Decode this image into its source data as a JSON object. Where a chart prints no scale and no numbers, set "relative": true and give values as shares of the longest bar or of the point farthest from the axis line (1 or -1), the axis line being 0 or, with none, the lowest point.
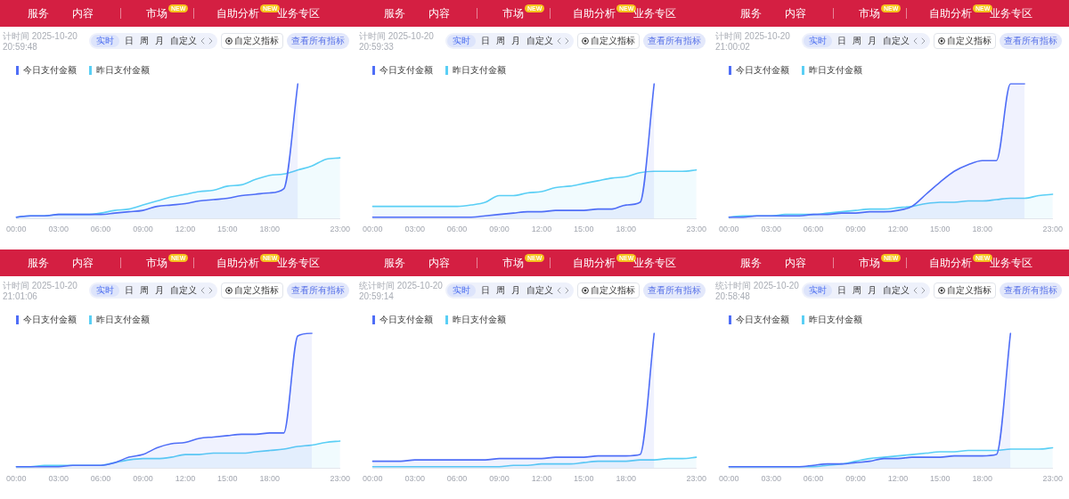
{
  "chart_data": [
    {
      "type": "area",
      "relative": true,
      "legend": "top left",
      "categories": [
        "00:00",
        null,
        null,
        "03:00",
        null,
        null,
        "06:00",
        null,
        null,
        "09:00",
        null,
        null,
        "12:00",
        null,
        null,
        "15:00",
        null,
        null,
        "18:00",
        null,
        null,
        null,
        null,
        "23:00"
      ],
      "series": [
        {
          "name": "今日支付金额",
          "color": "#4f6ef7",
          "values": [
            0.01,
            0.02,
            0.02,
            0.03,
            0.03,
            0.03,
            0.03,
            0.04,
            0.05,
            0.06,
            0.09,
            0.1,
            0.11,
            0.13,
            0.14,
            0.15,
            0.17,
            0.18,
            0.19,
            0.22,
            1,
            null,
            null,
            null
          ]
        },
        {
          "name": "昨日支付金额",
          "color": "#5acff5",
          "values": [
            0.01,
            0.02,
            0.02,
            0.03,
            0.03,
            0.03,
            0.04,
            0.06,
            0.07,
            0.1,
            0.13,
            0.16,
            0.18,
            0.2,
            0.21,
            0.24,
            0.25,
            0.29,
            0.32,
            0.33,
            0.36,
            0.39,
            0.44,
            0.45
          ]
        }
      ],
      "annotations": [
        "服务",
        "内容",
        "市场",
        "NEW",
        "自助分析",
        "NEW",
        "业务专区",
        "计时间 2025-10-20 20:59:48",
        "实时",
        "日",
        "周",
        "月",
        "自定义",
        "自定义指标",
        "查看所有指标"
      ]
    },
    {
      "type": "area",
      "relative": true,
      "legend": "top left",
      "categories": [
        "00:00",
        null,
        null,
        "03:00",
        null,
        null,
        "06:00",
        null,
        null,
        "09:00",
        null,
        null,
        "12:00",
        null,
        null,
        "15:00",
        null,
        null,
        "18:00",
        null,
        null,
        null,
        null,
        "23:00"
      ],
      "series": [
        {
          "name": "今日支付金额",
          "color": "#4f6ef7",
          "values": [
            0.01,
            0.01,
            0.01,
            0.01,
            0.01,
            0.01,
            0.01,
            0.01,
            0.02,
            0.03,
            0.04,
            0.05,
            0.05,
            0.06,
            0.06,
            0.06,
            0.07,
            0.07,
            0.1,
            0.12,
            1,
            null,
            null,
            null
          ]
        },
        {
          "name": "昨日支付金额",
          "color": "#5acff5",
          "values": [
            0.09,
            0.09,
            0.09,
            0.09,
            0.09,
            0.09,
            0.09,
            0.1,
            0.12,
            0.17,
            0.17,
            0.19,
            0.2,
            0.23,
            0.24,
            0.26,
            0.28,
            0.3,
            0.31,
            0.34,
            0.35,
            0.35,
            0.35,
            0.36
          ]
        }
      ],
      "annotations": [
        "服务",
        "内容",
        "市场",
        "NEW",
        "自助分析",
        "NEW",
        "业务专区",
        "计时间 2025-10-20 20:59:33",
        "实时",
        "日",
        "周",
        "月",
        "自定义",
        "自定义指标",
        "查看所有指标"
      ]
    },
    {
      "type": "area",
      "relative": true,
      "legend": "top left",
      "categories": [
        "00:00",
        null,
        null,
        "03:00",
        null,
        null,
        "06:00",
        null,
        null,
        "09:00",
        null,
        null,
        "12:00",
        null,
        null,
        "15:00",
        null,
        null,
        "18:00",
        null,
        null,
        null,
        null,
        "23:00"
      ],
      "series": [
        {
          "name": "今日支付金额",
          "color": "#4f6ef7",
          "values": [
            0.01,
            0.01,
            0.02,
            0.02,
            0.02,
            0.02,
            0.03,
            0.03,
            0.04,
            0.04,
            0.05,
            0.05,
            0.06,
            0.09,
            0.18,
            0.27,
            0.35,
            0.4,
            0.43,
            0.43,
            1,
            1,
            null,
            null
          ]
        },
        {
          "name": "昨日支付金额",
          "color": "#5acff5",
          "values": [
            0.01,
            0.02,
            0.02,
            0.02,
            0.03,
            0.03,
            0.03,
            0.04,
            0.05,
            0.06,
            0.07,
            0.07,
            0.08,
            0.09,
            0.11,
            0.12,
            0.12,
            0.13,
            0.13,
            0.14,
            0.15,
            0.15,
            0.17,
            0.18
          ]
        }
      ],
      "annotations": [
        "服务",
        "内容",
        "市场",
        "NEW",
        "自助分析",
        "NEW",
        "业务专区",
        "计时间 2025-10-20 21:00:02",
        "实时",
        "日",
        "周",
        "月",
        "自定义",
        "自定义指标",
        "查看所有指标"
      ]
    },
    {
      "type": "area",
      "relative": true,
      "legend": "top left",
      "categories": [
        "00:00",
        null,
        null,
        "03:00",
        null,
        null,
        "06:00",
        null,
        null,
        "09:00",
        null,
        null,
        "12:00",
        null,
        null,
        "15:00",
        null,
        null,
        "18:00",
        null,
        null,
        null,
        null,
        "23:00"
      ],
      "series": [
        {
          "name": "今日支付金额",
          "color": "#4f6ef7",
          "values": [
            0.01,
            0.01,
            0.01,
            0.01,
            0.02,
            0.02,
            0.02,
            0.04,
            0.08,
            0.1,
            0.15,
            0.18,
            0.19,
            0.22,
            0.23,
            0.24,
            0.25,
            0.25,
            0.26,
            0.26,
            0.98,
            1,
            null,
            null
          ]
        },
        {
          "name": "昨日支付金额",
          "color": "#5acff5",
          "values": [
            0.01,
            0.01,
            0.02,
            0.02,
            0.02,
            0.02,
            0.02,
            0.04,
            0.06,
            0.07,
            0.07,
            0.08,
            0.1,
            0.1,
            0.11,
            0.11,
            0.11,
            0.12,
            0.13,
            0.14,
            0.16,
            0.17,
            0.19,
            0.2
          ]
        }
      ],
      "annotations": [
        "服务",
        "内容",
        "市场",
        "NEW",
        "自助分析",
        "NEW",
        "业务专区",
        "计时间 2025-10-20 21:01:06",
        "实时",
        "日",
        "周",
        "月",
        "自定义",
        "自定义指标",
        "查看所有指标"
      ]
    },
    {
      "type": "area",
      "relative": true,
      "legend": "top left",
      "categories": [
        "00:00",
        null,
        null,
        "03:00",
        null,
        null,
        "06:00",
        null,
        null,
        "09:00",
        null,
        null,
        "12:00",
        null,
        null,
        "15:00",
        null,
        null,
        "18:00",
        null,
        null,
        null,
        null,
        "23:00"
      ],
      "series": [
        {
          "name": "今日支付金额",
          "color": "#4f6ef7",
          "values": [
            0.05,
            0.05,
            0.05,
            0.06,
            0.06,
            0.06,
            0.06,
            0.06,
            0.06,
            0.07,
            0.07,
            0.07,
            0.07,
            0.08,
            0.08,
            0.08,
            0.09,
            0.09,
            0.09,
            0.1,
            1,
            null,
            null,
            null
          ]
        },
        {
          "name": "昨日支付金额",
          "color": "#5acff5",
          "values": [
            0.01,
            0.01,
            0.01,
            0.01,
            0.01,
            0.01,
            0.01,
            0.01,
            0.01,
            0.01,
            0.02,
            0.02,
            0.03,
            0.03,
            0.03,
            0.04,
            0.05,
            0.05,
            0.05,
            0.06,
            0.06,
            0.07,
            0.07,
            0.08
          ]
        }
      ],
      "annotations": [
        "服务",
        "内容",
        "市场",
        "NEW",
        "自助分析",
        "NEW",
        "业务专区",
        "统计时间 2025-10-20 20:59:14",
        "实时",
        "日",
        "周",
        "月",
        "自定义",
        "自定义指标",
        "查看所有指标"
      ]
    },
    {
      "type": "area",
      "relative": true,
      "legend": "top left",
      "categories": [
        "00:00",
        null,
        null,
        "03:00",
        null,
        null,
        "06:00",
        null,
        null,
        "09:00",
        null,
        null,
        "12:00",
        null,
        null,
        "15:00",
        null,
        null,
        "18:00",
        null,
        null,
        null,
        null,
        "23:00"
      ],
      "series": [
        {
          "name": "今日支付金额",
          "color": "#4f6ef7",
          "values": [
            0.01,
            0.01,
            0.01,
            0.01,
            0.01,
            0.01,
            0.02,
            0.03,
            0.03,
            0.04,
            0.05,
            0.07,
            0.07,
            0.08,
            0.08,
            0.08,
            0.09,
            0.09,
            0.09,
            0.1,
            1,
            null,
            null,
            null
          ]
        },
        {
          "name": "昨日支付金额",
          "color": "#5acff5",
          "values": [
            0.01,
            0.01,
            0.01,
            0.01,
            0.01,
            0.01,
            0.01,
            0.02,
            0.03,
            0.05,
            0.07,
            0.08,
            0.09,
            0.1,
            0.11,
            0.12,
            0.12,
            0.13,
            0.13,
            0.13,
            0.14,
            0.14,
            0.14,
            0.15
          ]
        }
      ],
      "annotations": [
        "服务",
        "内容",
        "市场",
        "NEW",
        "自助分析",
        "NEW",
        "业务专区",
        "统计时间 2025-10-20 20:58:48",
        "实时",
        "日",
        "周",
        "月",
        "自定义",
        "自定义指标",
        "查看所有指标"
      ]
    }
  ]
}
